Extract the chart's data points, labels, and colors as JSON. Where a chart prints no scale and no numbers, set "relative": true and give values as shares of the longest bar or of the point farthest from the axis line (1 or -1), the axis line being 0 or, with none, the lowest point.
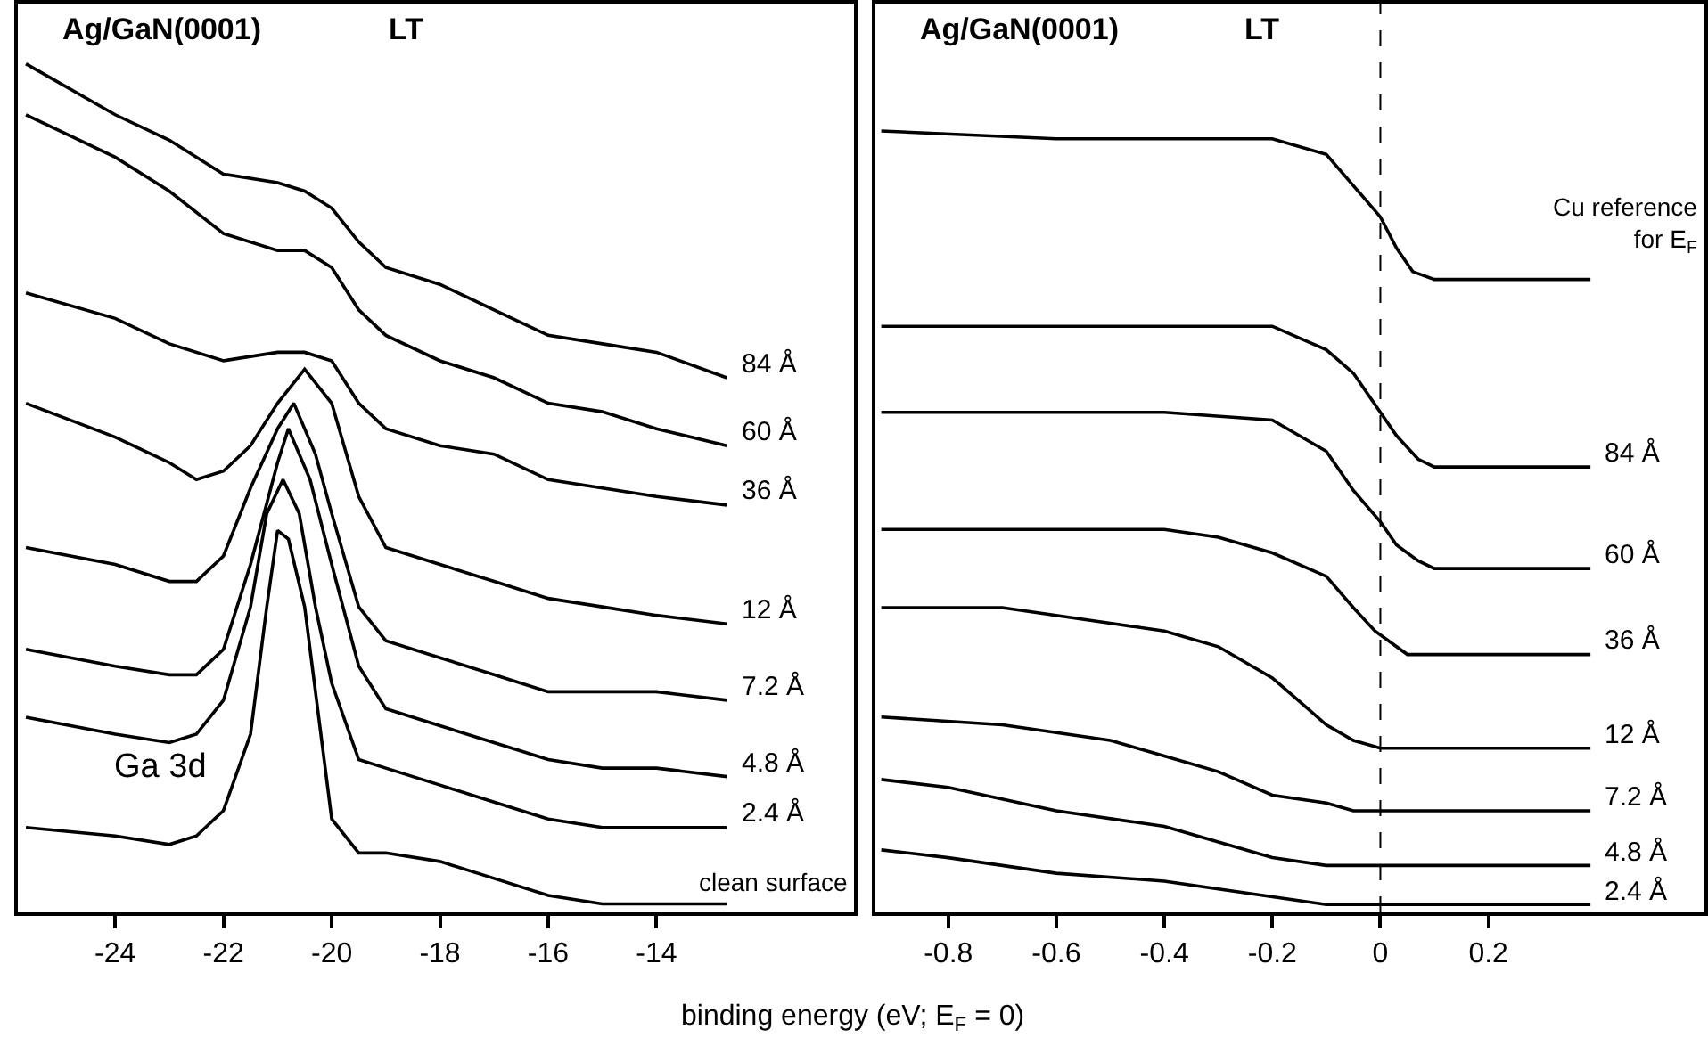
{
  "chart_data": [
    {
      "type": "line",
      "title": "Ag/GaN(0001)",
      "subtitle": "LT",
      "xlabel": "binding energy (eV; E$_{F}$ = 0)",
      "relative": true,
      "legend": false,
      "grid": false,
      "tick_labels": "x",
      "xlim": [
        -25.8,
        -10.35
      ],
      "xticks": [
        -24,
        -22,
        -20,
        -18,
        -16,
        -14
      ],
      "annotations": [
        "Ga 3d"
      ],
      "series": [
        {
          "name": "84 Å",
          "color": "#000000",
          "x": [
            -25.65,
            -24,
            -23,
            -22,
            -21,
            -20.5,
            -20,
            -19.5,
            -19,
            -18,
            -17,
            -16,
            -15,
            -14,
            -12.7
          ],
          "values": [
            1.0,
            0.94,
            0.91,
            0.87,
            0.86,
            0.85,
            0.83,
            0.79,
            0.76,
            0.74,
            0.71,
            0.68,
            0.67,
            0.66,
            0.63
          ]
        },
        {
          "name": "60 Å",
          "color": "#000000",
          "x": [
            -25.65,
            -24,
            -23,
            -22,
            -21,
            -20.5,
            -20,
            -19.5,
            -19,
            -18,
            -17,
            -16,
            -15,
            -14,
            -12.7
          ],
          "values": [
            0.94,
            0.89,
            0.85,
            0.8,
            0.78,
            0.78,
            0.76,
            0.71,
            0.68,
            0.65,
            0.63,
            0.6,
            0.59,
            0.57,
            0.55
          ]
        },
        {
          "name": "36 Å",
          "color": "#000000",
          "x": [
            -25.65,
            -24,
            -23,
            -22,
            -21,
            -20.5,
            -20,
            -19.5,
            -19,
            -18,
            -17,
            -16,
            -15,
            -14,
            -12.7
          ],
          "values": [
            0.73,
            0.7,
            0.67,
            0.65,
            0.66,
            0.66,
            0.65,
            0.6,
            0.57,
            0.55,
            0.54,
            0.51,
            0.5,
            0.49,
            0.48
          ]
        },
        {
          "name": "12 Å",
          "color": "#000000",
          "x": [
            -25.65,
            -24,
            -23,
            -22.5,
            -22,
            -21.5,
            -21,
            -20.5,
            -20,
            -19.5,
            -19,
            -18,
            -17,
            -16,
            -15,
            -14,
            -12.7
          ],
          "values": [
            0.6,
            0.56,
            0.53,
            0.51,
            0.52,
            0.55,
            0.6,
            0.64,
            0.6,
            0.49,
            0.43,
            0.41,
            0.39,
            0.37,
            0.36,
            0.35,
            0.34
          ]
        },
        {
          "name": "7.2 Å",
          "color": "#000000",
          "x": [
            -25.65,
            -24,
            -23,
            -22.5,
            -22,
            -21.5,
            -21,
            -20.7,
            -20.3,
            -20,
            -19.5,
            -19,
            -18,
            -17,
            -16,
            -15,
            -14,
            -12.7
          ],
          "values": [
            0.43,
            0.41,
            0.39,
            0.39,
            0.42,
            0.5,
            0.57,
            0.6,
            0.54,
            0.47,
            0.36,
            0.32,
            0.3,
            0.28,
            0.26,
            0.26,
            0.26,
            0.25
          ]
        },
        {
          "name": "4.8 Å",
          "color": "#000000",
          "x": [
            -25.65,
            -24,
            -23,
            -22.5,
            -22,
            -21.5,
            -21,
            -20.8,
            -20.4,
            -20,
            -19.5,
            -19,
            -18,
            -17,
            -16,
            -15,
            -14,
            -12.7
          ],
          "values": [
            0.31,
            0.29,
            0.28,
            0.28,
            0.31,
            0.41,
            0.53,
            0.57,
            0.51,
            0.41,
            0.29,
            0.24,
            0.22,
            0.2,
            0.18,
            0.17,
            0.17,
            0.16
          ]
        },
        {
          "name": "2.4 Å",
          "color": "#000000",
          "x": [
            -25.65,
            -24,
            -23,
            -22.5,
            -22,
            -21.5,
            -21.2,
            -20.9,
            -20.6,
            -20.3,
            -20,
            -19.5,
            -19,
            -18,
            -17,
            -16,
            -15,
            -14,
            -12.7
          ],
          "values": [
            0.23,
            0.21,
            0.2,
            0.21,
            0.25,
            0.36,
            0.47,
            0.51,
            0.47,
            0.36,
            0.27,
            0.18,
            0.17,
            0.15,
            0.13,
            0.11,
            0.1,
            0.1,
            0.1
          ]
        },
        {
          "name": "clean surface",
          "color": "#000000",
          "x": [
            -25.65,
            -24,
            -23,
            -22.5,
            -22,
            -21.5,
            -21.2,
            -21,
            -20.8,
            -20.5,
            -20.2,
            -20,
            -19.5,
            -19,
            -18,
            -17,
            -16,
            -15,
            -14,
            -12.7
          ],
          "values": [
            0.1,
            0.09,
            0.08,
            0.09,
            0.12,
            0.21,
            0.36,
            0.45,
            0.44,
            0.36,
            0.21,
            0.11,
            0.07,
            0.07,
            0.06,
            0.04,
            0.02,
            0.01,
            0.01,
            0.01
          ]
        }
      ]
    },
    {
      "type": "line",
      "title": "Ag/GaN(0001)",
      "subtitle": "LT",
      "relative": true,
      "legend": false,
      "grid": false,
      "tick_labels": "x",
      "xlim": [
        -0.935,
        0.6
      ],
      "xticks": [
        -0.8,
        -0.6,
        -0.4,
        -0.2,
        0,
        0.2
      ],
      "ref_lines": [
        {
          "axis": "x",
          "value": 0,
          "color": "#000000",
          "line_style": "dashed"
        }
      ],
      "series": [
        {
          "name": "Cu reference for E$_{F}$",
          "color": "#000000",
          "x": [
            -0.924,
            -0.6,
            -0.4,
            -0.2,
            -0.1,
            -0.05,
            0,
            0.03,
            0.06,
            0.1,
            0.2,
            0.389
          ],
          "values": [
            1.0,
            0.99,
            0.99,
            0.99,
            0.97,
            0.93,
            0.89,
            0.85,
            0.82,
            0.81,
            0.81,
            0.81
          ]
        },
        {
          "name": "84 Å",
          "color": "#000000",
          "x": [
            -0.924,
            -0.6,
            -0.4,
            -0.2,
            -0.1,
            -0.05,
            0,
            0.03,
            0.07,
            0.1,
            0.2,
            0.389
          ],
          "values": [
            0.75,
            0.75,
            0.75,
            0.75,
            0.72,
            0.69,
            0.64,
            0.61,
            0.58,
            0.57,
            0.57,
            0.57
          ]
        },
        {
          "name": "60 Å",
          "color": "#000000",
          "x": [
            -0.924,
            -0.6,
            -0.4,
            -0.2,
            -0.1,
            -0.05,
            0,
            0.03,
            0.07,
            0.1,
            0.2,
            0.389
          ],
          "values": [
            0.64,
            0.64,
            0.64,
            0.63,
            0.59,
            0.54,
            0.5,
            0.47,
            0.45,
            0.44,
            0.44,
            0.44
          ]
        },
        {
          "name": "36 Å",
          "color": "#000000",
          "x": [
            -0.924,
            -0.6,
            -0.4,
            -0.3,
            -0.2,
            -0.1,
            -0.05,
            -0.01,
            0.01,
            0.05,
            0.1,
            0.2,
            0.389
          ],
          "values": [
            0.49,
            0.49,
            0.49,
            0.48,
            0.46,
            0.43,
            0.39,
            0.36,
            0.35,
            0.33,
            0.33,
            0.33,
            0.33
          ]
        },
        {
          "name": "12 Å",
          "color": "#000000",
          "x": [
            -0.924,
            -0.7,
            -0.5,
            -0.4,
            -0.3,
            -0.2,
            -0.15,
            -0.1,
            -0.05,
            0,
            0.1,
            0.2,
            0.389
          ],
          "values": [
            0.39,
            0.39,
            0.37,
            0.36,
            0.34,
            0.3,
            0.27,
            0.24,
            0.22,
            0.21,
            0.21,
            0.21,
            0.21
          ]
        },
        {
          "name": "7.2 Å",
          "color": "#000000",
          "x": [
            -0.924,
            -0.7,
            -0.5,
            -0.4,
            -0.3,
            -0.2,
            -0.1,
            -0.05,
            0,
            0.2,
            0.389
          ],
          "values": [
            0.25,
            0.24,
            0.22,
            0.2,
            0.18,
            0.15,
            0.14,
            0.13,
            0.13,
            0.13,
            0.13
          ]
        },
        {
          "name": "4.8 Å",
          "color": "#000000",
          "x": [
            -0.924,
            -0.8,
            -0.6,
            -0.4,
            -0.3,
            -0.2,
            -0.1,
            0,
            0.2,
            0.389
          ],
          "values": [
            0.17,
            0.16,
            0.13,
            0.11,
            0.09,
            0.07,
            0.06,
            0.06,
            0.06,
            0.06
          ]
        },
        {
          "name": "2.4 Å",
          "color": "#000000",
          "x": [
            -0.924,
            -0.8,
            -0.6,
            -0.4,
            -0.3,
            -0.2,
            -0.1,
            0,
            0.2,
            0.389
          ],
          "values": [
            0.08,
            0.07,
            0.05,
            0.04,
            0.03,
            0.02,
            0.01,
            0.01,
            0.01,
            0.01
          ]
        }
      ]
    }
  ]
}
